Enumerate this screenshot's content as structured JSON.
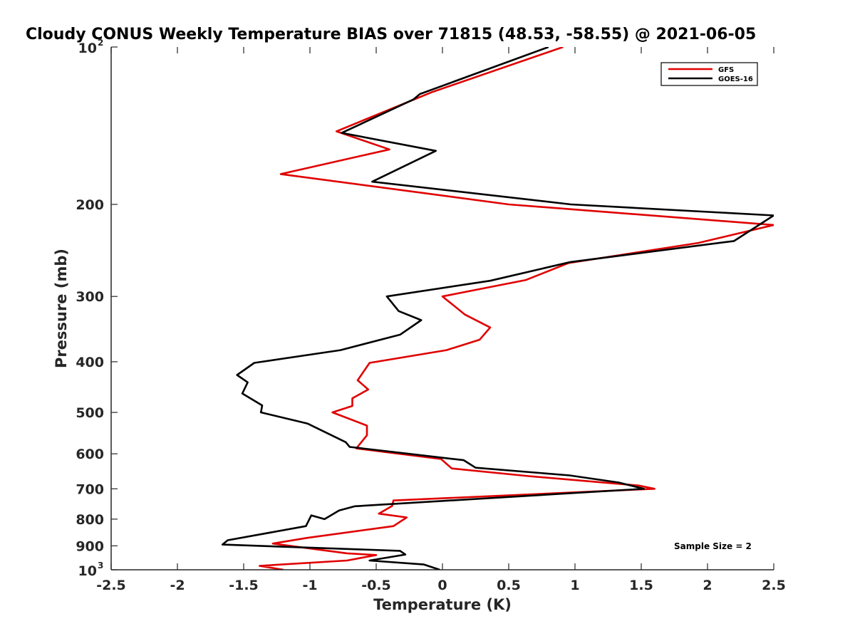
{
  "chart_data": {
    "type": "line",
    "title": "Cloudy CONUS Weekly Temperature BIAS over 71815 (48.53, -58.55) @ 2021-06-05",
    "xlabel": "Temperature (K)",
    "ylabel": "Pressure (mb)",
    "xlim": [
      -2.5,
      2.5
    ],
    "ylim": [
      100,
      1000
    ],
    "y_scale": "log",
    "y_reversed": true,
    "grid": false,
    "legend_position": "top-right",
    "x_ticks": [
      "-2.5",
      "-2",
      "-1.5",
      "-1",
      "-0.5",
      "0",
      "0.5",
      "1",
      "1.5",
      "2",
      "2.5"
    ],
    "y_ticks": [
      {
        "value": 100,
        "base": "10",
        "exp": "2"
      },
      {
        "value": 200,
        "label": "200"
      },
      {
        "value": 300,
        "label": "300"
      },
      {
        "value": 400,
        "label": "400"
      },
      {
        "value": 500,
        "label": "500"
      },
      {
        "value": 600,
        "label": "600"
      },
      {
        "value": 700,
        "label": "700"
      },
      {
        "value": 800,
        "label": "800"
      },
      {
        "value": 900,
        "label": "900"
      },
      {
        "value": 1000,
        "base": "10",
        "exp": "3"
      }
    ],
    "series": [
      {
        "name": "GFS",
        "color": "#e00000",
        "points": [
          [
            0.91,
            100
          ],
          [
            -0.08,
            122
          ],
          [
            -0.18,
            125
          ],
          [
            -0.8,
            145
          ],
          [
            -0.4,
            157
          ],
          [
            -1.22,
            175
          ],
          [
            0.5,
            200
          ],
          [
            2.5,
            219
          ],
          [
            1.93,
            237
          ],
          [
            0.95,
            259
          ],
          [
            0.63,
            279
          ],
          [
            0,
            300
          ],
          [
            0.17,
            325
          ],
          [
            0.36,
            344
          ],
          [
            0.28,
            363
          ],
          [
            0.03,
            380
          ],
          [
            -0.55,
            402
          ],
          [
            -0.64,
            434
          ],
          [
            -0.56,
            452
          ],
          [
            -0.68,
            470
          ],
          [
            -0.68,
            486
          ],
          [
            -0.83,
            500
          ],
          [
            -0.57,
            530
          ],
          [
            -0.57,
            553
          ],
          [
            -0.65,
            586
          ],
          [
            -0.01,
            614
          ],
          [
            0.07,
            640
          ],
          [
            0.65,
            662
          ],
          [
            1.48,
            690
          ],
          [
            1.6,
            700
          ],
          [
            -0.37,
            737
          ],
          [
            -0.38,
            755
          ],
          [
            -0.48,
            781
          ],
          [
            -0.27,
            794
          ],
          [
            -0.37,
            825
          ],
          [
            -1.02,
            869
          ],
          [
            -1.28,
            891
          ],
          [
            -0.72,
            930
          ],
          [
            -0.5,
            937
          ],
          [
            -0.72,
            960
          ],
          [
            -1.38,
            983
          ],
          [
            -1.2,
            1000
          ]
        ]
      },
      {
        "name": "GOES-16",
        "color": "#000000",
        "points": [
          [
            0.8,
            100
          ],
          [
            -0.17,
            123
          ],
          [
            -0.22,
            126
          ],
          [
            -0.76,
            146
          ],
          [
            -0.05,
            158
          ],
          [
            -0.53,
            181
          ],
          [
            0.97,
            200
          ],
          [
            2.5,
            210
          ],
          [
            2.2,
            235
          ],
          [
            0.96,
            258
          ],
          [
            0.36,
            280
          ],
          [
            -0.42,
            300
          ],
          [
            -0.33,
            320
          ],
          [
            -0.16,
            333
          ],
          [
            -0.32,
            355
          ],
          [
            -0.77,
            380
          ],
          [
            -1.42,
            402
          ],
          [
            -1.55,
            424
          ],
          [
            -1.47,
            438
          ],
          [
            -1.51,
            460
          ],
          [
            -1.36,
            485
          ],
          [
            -1.37,
            500
          ],
          [
            -1.02,
            525
          ],
          [
            -0.73,
            570
          ],
          [
            -0.7,
            582
          ],
          [
            0.16,
            617
          ],
          [
            0.25,
            638
          ],
          [
            0.96,
            660
          ],
          [
            1.33,
            681
          ],
          [
            1.52,
            700
          ],
          [
            -0.66,
            756
          ],
          [
            -0.78,
            770
          ],
          [
            -0.89,
            800
          ],
          [
            -0.99,
            787
          ],
          [
            -1.03,
            825
          ],
          [
            -1.62,
            878
          ],
          [
            -1.66,
            895
          ],
          [
            -0.32,
            920
          ],
          [
            -0.28,
            935
          ],
          [
            -0.55,
            960
          ],
          [
            -0.14,
            977
          ],
          [
            -0.02,
            1000
          ]
        ]
      }
    ],
    "annotation": "Sample Size = 2"
  }
}
